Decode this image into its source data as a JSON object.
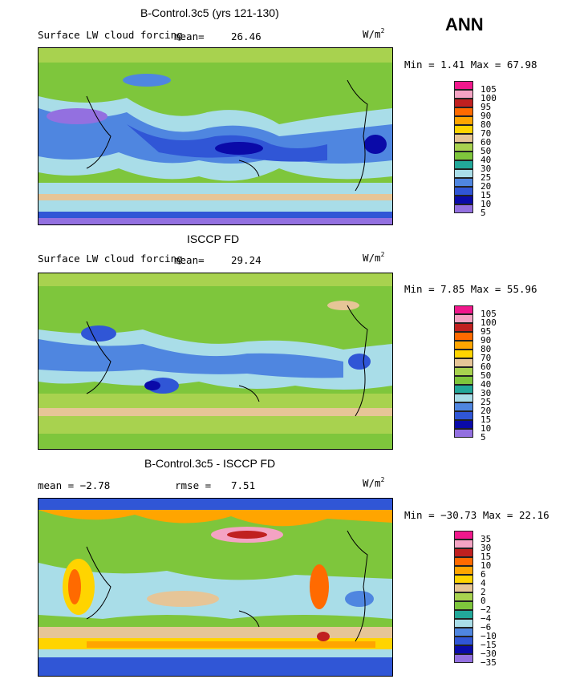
{
  "corner_label": "ANN",
  "panels": [
    {
      "title": "B-Control.3c5 (yrs 121-130)",
      "left_label": "Surface LW cloud forcing",
      "stat_label": "mean=",
      "stat_value": "26.46",
      "units_base": "W/m",
      "units_sup": "2",
      "minmax": "Min =   1.41 Max =  67.98",
      "legend_ticks": [
        "105",
        "100",
        "95",
        "90",
        "80",
        "70",
        "60",
        "50",
        "40",
        "30",
        "25",
        "20",
        "15",
        "10",
        "5"
      ]
    },
    {
      "title": "ISCCP FD",
      "left_label": "Surface LW cloud forcing",
      "stat_label": "mean=",
      "stat_value": "29.24",
      "units_base": "W/m",
      "units_sup": "2",
      "minmax": "Min =   7.85 Max =  55.96",
      "legend_ticks": [
        "105",
        "100",
        "95",
        "90",
        "80",
        "70",
        "60",
        "50",
        "40",
        "30",
        "25",
        "20",
        "15",
        "10",
        "5"
      ]
    },
    {
      "title": "B-Control.3c5 - ISCCP FD",
      "left_label": "mean =  −2.78",
      "stat_label": "rmse =",
      "stat_value": "7.51",
      "units_base": "W/m",
      "units_sup": "2",
      "minmax": "Min = −30.73 Max =  22.16",
      "legend_ticks": [
        "35",
        "30",
        "15",
        "10",
        "6",
        "4",
        "2",
        "0",
        "−2",
        "−4",
        "−6",
        "−10",
        "−15",
        "−30",
        "−35"
      ]
    }
  ],
  "colors": {
    "legend_swatches": [
      "#f0188c",
      "#f4a3c3",
      "#c02020",
      "#ff6a00",
      "#ffa500",
      "#ffd400",
      "#e6c597",
      "#a8d24f",
      "#7ec63c",
      "#22a89a",
      "#a9dde8",
      "#4f86e0",
      "#3056d6",
      "#0a0aa8",
      "#9370e0"
    ]
  }
}
